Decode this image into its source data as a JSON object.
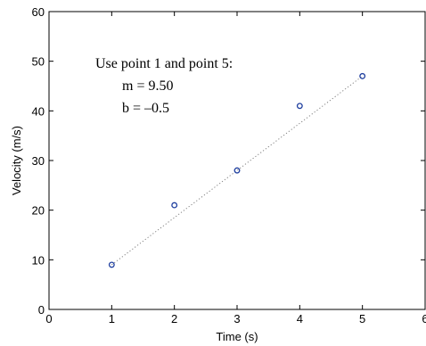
{
  "chart_data": {
    "type": "scatter",
    "title": "",
    "xlabel": "Time (s)",
    "ylabel": "Velocity  (m/s)",
    "xlim": [
      0,
      6
    ],
    "ylim": [
      0,
      60
    ],
    "xticks": [
      0,
      1,
      2,
      3,
      4,
      5,
      6
    ],
    "yticks": [
      0,
      10,
      20,
      30,
      40,
      50,
      60
    ],
    "grid": false,
    "series": [
      {
        "type": "scatter",
        "marker": "circle-open",
        "color": "#1f3f9f",
        "x": [
          1,
          2,
          3,
          4,
          5
        ],
        "y": [
          9,
          21,
          28,
          41,
          47
        ]
      },
      {
        "type": "line",
        "style": "dotted",
        "color": "#808080",
        "x": [
          1,
          5
        ],
        "y": [
          9,
          47
        ]
      }
    ],
    "annotation": {
      "lines": [
        "Use point 1 and point 5:",
        "m = 9.50",
        "b = –0.5"
      ]
    }
  }
}
